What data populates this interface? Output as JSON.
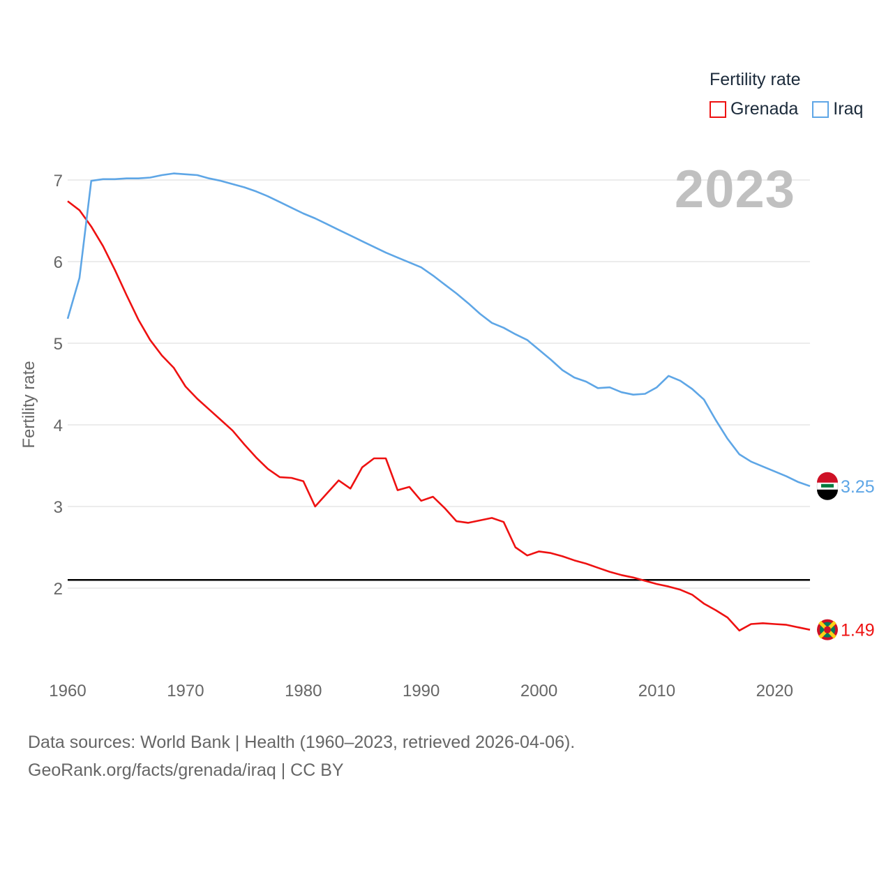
{
  "legend": {
    "title": "Fertility rate",
    "items": [
      {
        "label": "Grenada",
        "color": "#ee1111"
      },
      {
        "label": "Iraq",
        "color": "#5ea6e6"
      }
    ]
  },
  "year_label": "2023",
  "source": {
    "line1": "Data sources: World Bank | Health (1960–2023, retrieved 2026-04-06).",
    "line2": "GeoRank.org/facts/grenada/iraq | CC BY"
  },
  "chart_data": {
    "type": "line",
    "title": "Fertility rate",
    "xlabel": "",
    "ylabel": "Fertility rate",
    "xlim": [
      1960,
      2023
    ],
    "ylim": [
      1.0,
      7.2
    ],
    "yticks": [
      2,
      3,
      4,
      5,
      6,
      7
    ],
    "xticks": [
      1960,
      1970,
      1980,
      1990,
      2000,
      2010,
      2020
    ],
    "grid": true,
    "legend_position": "top-right",
    "reference_line": {
      "y": 2.1,
      "color": "#000000"
    },
    "x": [
      1960,
      1961,
      1962,
      1963,
      1964,
      1965,
      1966,
      1967,
      1968,
      1969,
      1970,
      1971,
      1972,
      1973,
      1974,
      1975,
      1976,
      1977,
      1978,
      1979,
      1980,
      1981,
      1982,
      1983,
      1984,
      1985,
      1986,
      1987,
      1988,
      1989,
      1990,
      1991,
      1992,
      1993,
      1994,
      1995,
      1996,
      1997,
      1998,
      1999,
      2000,
      2001,
      2002,
      2003,
      2004,
      2005,
      2006,
      2007,
      2008,
      2009,
      2010,
      2011,
      2012,
      2013,
      2014,
      2015,
      2016,
      2017,
      2018,
      2019,
      2020,
      2021,
      2022,
      2023
    ],
    "series": [
      {
        "name": "Grenada",
        "color": "#ee1111",
        "end_label": "1.49",
        "values": [
          6.74,
          6.63,
          6.43,
          6.19,
          5.9,
          5.59,
          5.29,
          5.04,
          4.85,
          4.7,
          4.47,
          4.32,
          4.19,
          4.06,
          3.93,
          3.76,
          3.6,
          3.46,
          3.36,
          3.35,
          3.31,
          3.0,
          3.16,
          3.32,
          3.22,
          3.48,
          3.59,
          3.59,
          3.2,
          3.24,
          3.07,
          3.12,
          2.98,
          2.82,
          2.8,
          2.83,
          2.86,
          2.81,
          2.5,
          2.4,
          2.45,
          2.43,
          2.39,
          2.34,
          2.3,
          2.25,
          2.2,
          2.16,
          2.13,
          2.09,
          2.05,
          2.02,
          1.98,
          1.92,
          1.81,
          1.73,
          1.64,
          1.48,
          1.56,
          1.57,
          1.56,
          1.55,
          1.52,
          1.49
        ]
      },
      {
        "name": "Iraq",
        "color": "#5ea6e6",
        "end_label": "3.25",
        "values": [
          5.3,
          5.8,
          6.99,
          7.01,
          7.01,
          7.02,
          7.02,
          7.03,
          7.06,
          7.08,
          7.07,
          7.06,
          7.02,
          6.99,
          6.95,
          6.91,
          6.86,
          6.8,
          6.73,
          6.66,
          6.59,
          6.53,
          6.46,
          6.39,
          6.32,
          6.25,
          6.18,
          6.11,
          6.05,
          5.99,
          5.93,
          5.83,
          5.72,
          5.61,
          5.49,
          5.36,
          5.25,
          5.19,
          5.11,
          5.04,
          4.92,
          4.8,
          4.67,
          4.58,
          4.53,
          4.45,
          4.46,
          4.4,
          4.37,
          4.38,
          4.46,
          4.6,
          4.54,
          4.44,
          4.31,
          4.06,
          3.83,
          3.64,
          3.55,
          3.49,
          3.43,
          3.37,
          3.3,
          3.25
        ]
      }
    ]
  }
}
